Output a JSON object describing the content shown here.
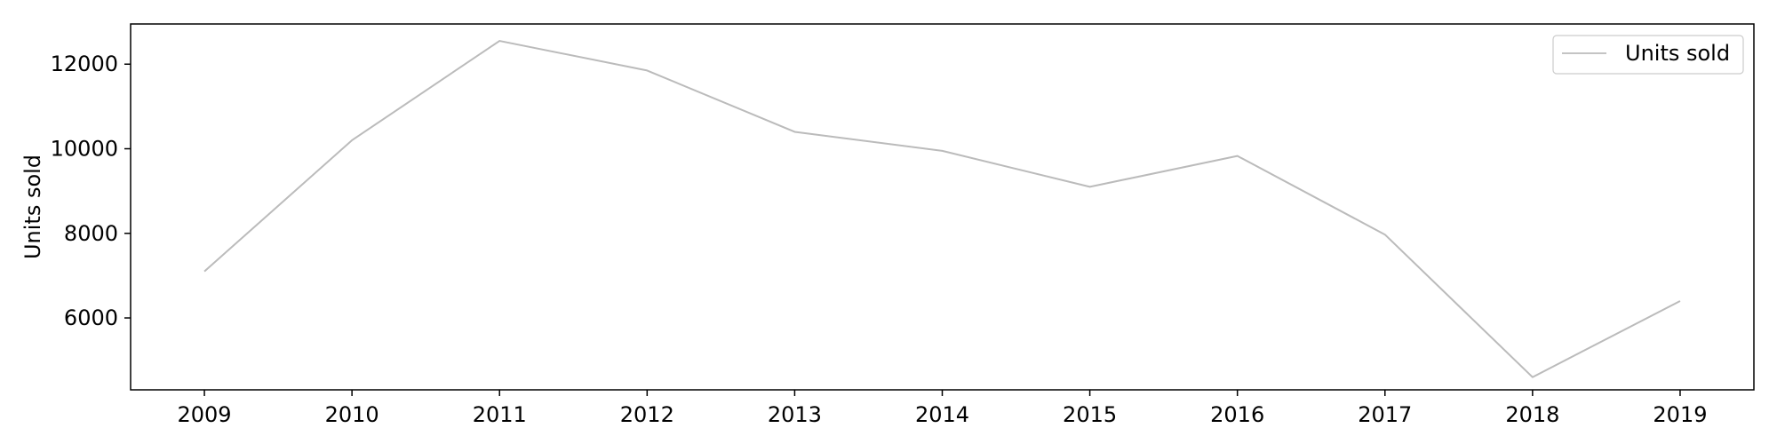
{
  "chart_data": {
    "type": "line",
    "title": "",
    "xlabel": "",
    "ylabel": "Units sold",
    "x": [
      2009,
      2010,
      2011,
      2012,
      2013,
      2014,
      2015,
      2016,
      2017,
      2018,
      2019
    ],
    "series": [
      {
        "name": "Units sold",
        "color": "#bbbbbb",
        "values": [
          7100,
          10200,
          12550,
          11850,
          10400,
          9950,
          9100,
          9830,
          7970,
          4600,
          6400
        ]
      }
    ],
    "xlim": [
      2008.5,
      2019.5
    ],
    "ylim": [
      4300,
      12950
    ],
    "yticks": [
      6000,
      8000,
      10000,
      12000
    ],
    "grid": false,
    "legend_position": "top-right"
  }
}
